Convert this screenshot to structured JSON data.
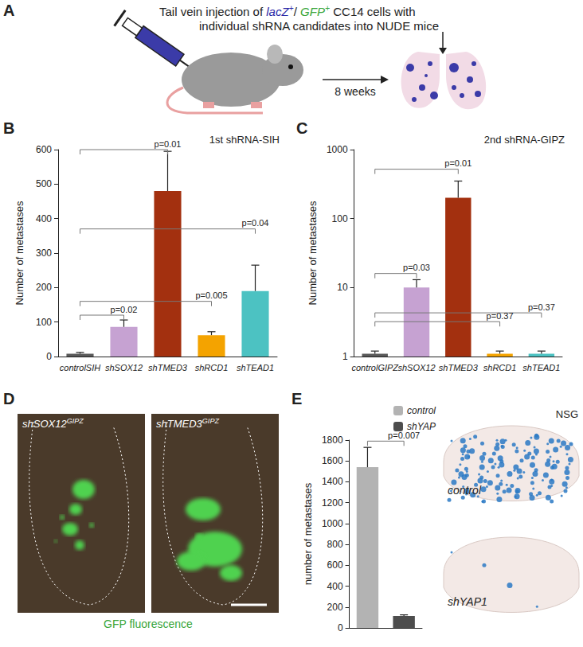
{
  "panels": {
    "A": {
      "letter": "A",
      "line1": [
        {
          "text": "Tail vein injection of "
        },
        {
          "text": "lacZ",
          "sup": "+",
          "color": "#2a2aa8"
        },
        {
          "text": "/ "
        },
        {
          "text": "GFP",
          "sup": "+",
          "color": "#3aa63a"
        },
        {
          "text": " CC14 cells with"
        }
      ],
      "line2": "individual shRNA candidates into NUDE mice",
      "arrow_label": "8 weeks"
    },
    "D": {
      "letter": "D",
      "images": [
        {
          "label": "shSOX12",
          "sup": "GIPZ"
        },
        {
          "label": "shTMED3",
          "sup": "GIPZ"
        }
      ],
      "caption": "GFP fluorescence"
    },
    "E": {
      "corner_label": "NSG",
      "images": [
        "control",
        "shYAP1"
      ]
    }
  },
  "chart_data": [
    {
      "panel": "B",
      "type": "bar",
      "title": "1st shRNA-SIH",
      "y_label": "Number of metastases",
      "categories": [
        "controlSIH",
        "shSOX12",
        "shTMED3",
        "shRCD1",
        "shTEAD1"
      ],
      "values": [
        8,
        86,
        480,
        62,
        190
      ],
      "errors": [
        4,
        20,
        115,
        10,
        75
      ],
      "colors": [
        "#595959",
        "#c6a2d2",
        "#a3300f",
        "#f4a300",
        "#4cc2c2"
      ],
      "ylim": [
        0,
        600
      ],
      "yticks": [
        0,
        100,
        200,
        300,
        400,
        500,
        600
      ],
      "grid": false,
      "annotations": [
        {
          "text": "p=0.01",
          "from": "controlSIH",
          "to": "shTMED3",
          "y": 600
        },
        {
          "text": "p=0.04",
          "from": "controlSIH",
          "to": "shTEAD1",
          "y": 370
        },
        {
          "text": "p=0.005",
          "from": "controlSIH",
          "to": "shRCD1",
          "y": 160
        },
        {
          "text": "p=0.02",
          "from": "controlSIH",
          "to": "shSOX12",
          "y": 120
        }
      ]
    },
    {
      "panel": "C",
      "type": "bar",
      "title": "2nd shRNA-GIPZ",
      "y_label": "Number of metastases",
      "log": "y",
      "categories": [
        "controlGIPZ",
        "shSOX12",
        "shTMED3",
        "shRCD1",
        "shTEAD1"
      ],
      "values": [
        1.1,
        10,
        200,
        1.1,
        1.1
      ],
      "errors": [
        0.1,
        3,
        150,
        0.1,
        0.1
      ],
      "colors": [
        "#595959",
        "#c6a2d2",
        "#a3300f",
        "#f4a300",
        "#4cc2c2"
      ],
      "ylim": [
        1,
        1000
      ],
      "yticks": [
        1,
        10,
        100,
        1000
      ],
      "grid": false,
      "annotations": [
        {
          "text": "p=0.01",
          "from": "controlGIPZ",
          "to": "shTMED3",
          "y": 520
        },
        {
          "text": "p=0.03",
          "from": "controlGIPZ",
          "to": "shSOX12",
          "y": 16
        },
        {
          "text": "p=0.37",
          "from": "controlGIPZ",
          "to": "shTEAD1",
          "y": 4.3
        },
        {
          "text": "p=0.37",
          "from": "controlGIPZ",
          "to": "shRCD1",
          "y": 3.2
        }
      ]
    },
    {
      "panel": "E",
      "type": "bar",
      "y_label": "number of metastases",
      "categories": [
        null,
        null
      ],
      "series": [
        {
          "name": "control",
          "color": "#b3b3b3",
          "values": [
            1540,
            null
          ],
          "errors": [
            190,
            null
          ]
        },
        {
          "name": "shYAP",
          "color": "#4d4d4d",
          "values": [
            null,
            115
          ],
          "errors": [
            null,
            10
          ]
        }
      ],
      "ylim": [
        0,
        1800
      ],
      "yticks": [
        0,
        200,
        400,
        600,
        800,
        1000,
        1200,
        1400,
        1600,
        1800
      ],
      "grid": false,
      "legend": "upper right",
      "tick_labels": "y",
      "annotations": [
        {
          "text": "p=0.007",
          "from": "control",
          "to": "shYAP",
          "y": 1790
        }
      ]
    }
  ]
}
